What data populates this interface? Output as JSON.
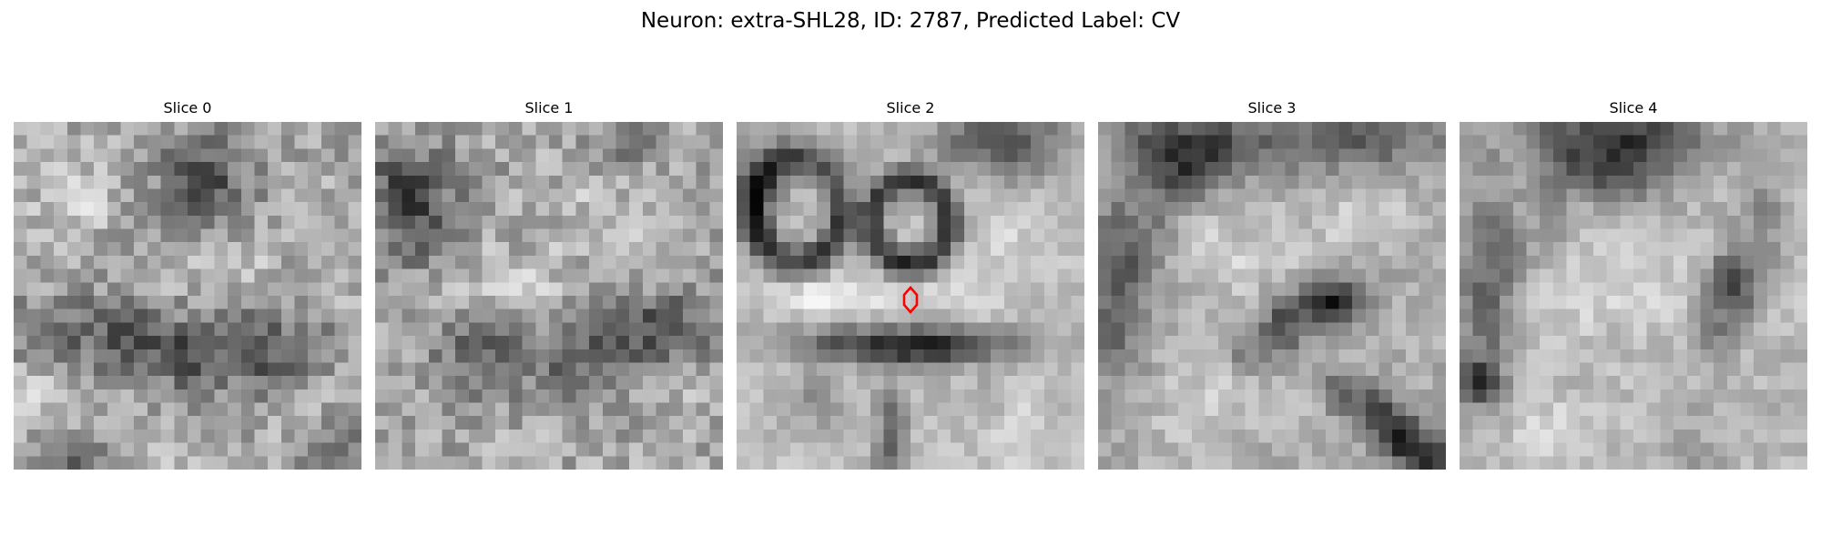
{
  "figure": {
    "title": "Neuron: extra-SHL28, ID: 2787, Predicted Label: CV"
  },
  "panels": [
    {
      "title": "Slice 0",
      "image": "grayscale-em-micrograph-slice-0",
      "content": "noisy grayscale texture with darker blob upper middle and dark horizontal band in lower half"
    },
    {
      "title": "Slice 1",
      "image": "grayscale-em-micrograph-slice-1",
      "content": "noisy grayscale texture with dark region upper left and dark band lower right"
    },
    {
      "title": "Slice 2",
      "image": "grayscale-em-micrograph-slice-2",
      "content": "two dark rings in upper half, dark elongated structure below, red hexagonal marker at centre",
      "marker": {
        "shape": "hexagon",
        "color": "#ff0000"
      }
    },
    {
      "title": "Slice 3",
      "image": "grayscale-em-micrograph-slice-3",
      "content": "dark structures along the top and left, dark spot at centre, dark diagonal band lower right"
    },
    {
      "title": "Slice 4",
      "image": "grayscale-em-micrograph-slice-4",
      "content": "dark blob at top centre, dark diagonal strands at the sides, bright centre"
    }
  ],
  "colors": {
    "background": "#ffffff",
    "text": "#000000",
    "marker": "#ff0000"
  }
}
